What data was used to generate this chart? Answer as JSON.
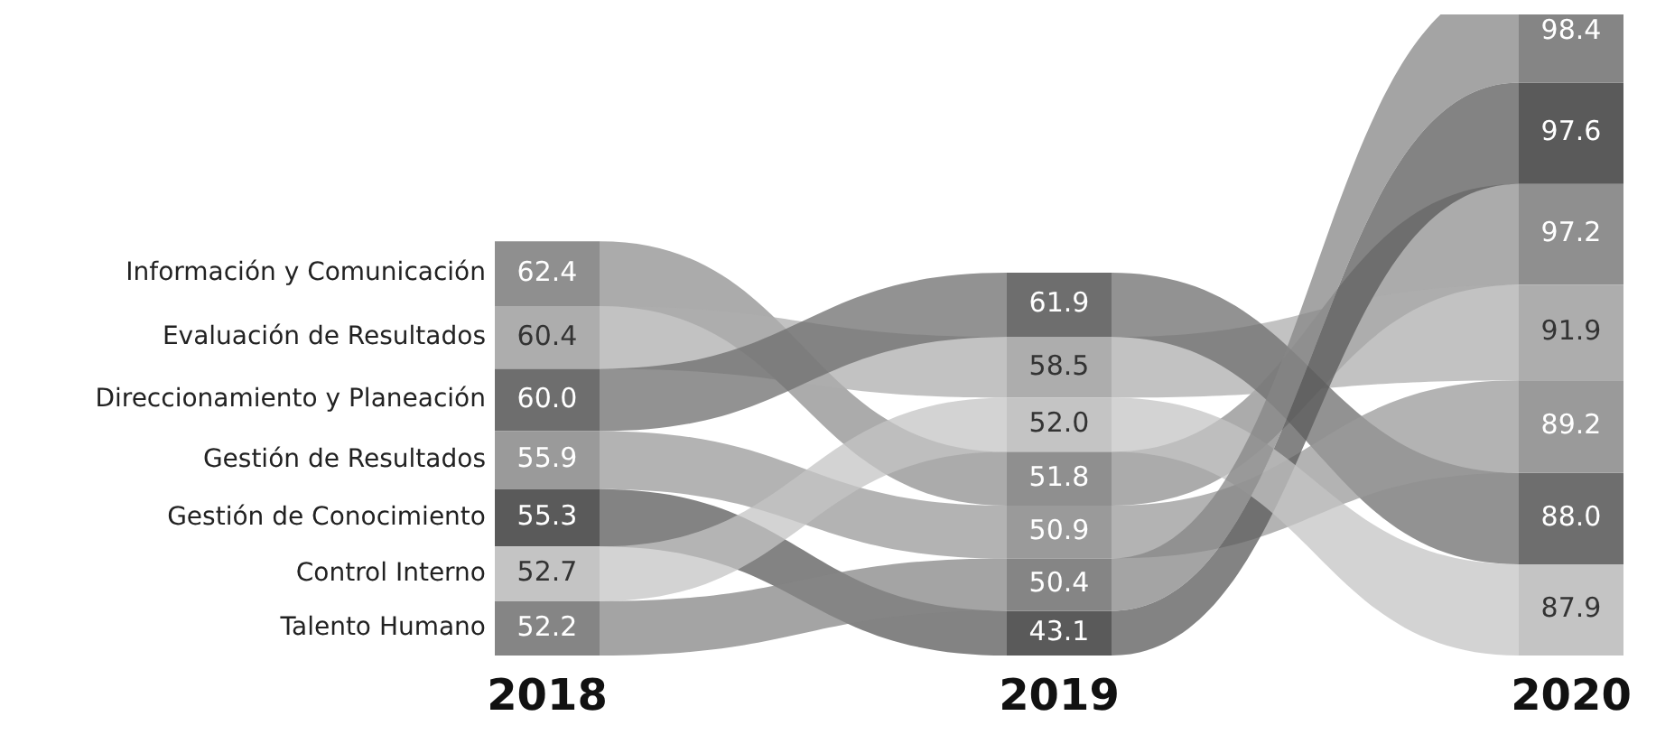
{
  "chart_data": {
    "type": "other",
    "categories": [
      "2018",
      "2019",
      "2020"
    ],
    "legend": "left",
    "series": [
      {
        "name": "Información y Comunicación",
        "color": "#8f8f8f",
        "values": [
          62.4,
          51.8,
          97.2
        ],
        "value_labels": [
          "62.4",
          "51.8",
          "97.2"
        ]
      },
      {
        "name": "Evaluación de Resultados",
        "color": "#adadad",
        "values": [
          60.4,
          58.5,
          91.9
        ],
        "value_labels": [
          "60.4",
          "58.5",
          "91.9"
        ]
      },
      {
        "name": "Direccionamiento y Planeación",
        "color": "#6e6e6e",
        "values": [
          60.0,
          61.9,
          88.0
        ],
        "value_labels": [
          "60.0",
          "61.9",
          "88.0"
        ]
      },
      {
        "name": "Gestión de Resultados",
        "color": "#9a9a9a",
        "values": [
          55.9,
          50.9,
          89.2
        ],
        "value_labels": [
          "55.9",
          "50.9",
          "89.2"
        ]
      },
      {
        "name": "Gestión de Conocimiento",
        "color": "#5a5a5a",
        "values": [
          55.3,
          43.1,
          97.6
        ],
        "value_labels": [
          "55.3",
          "43.1",
          "97.6"
        ]
      },
      {
        "name": "Control Interno",
        "color": "#c4c4c4",
        "values": [
          52.7,
          52.0,
          87.9
        ],
        "value_labels": [
          "52.7",
          "52.0",
          "87.9"
        ]
      },
      {
        "name": "Talento Humano",
        "color": "#858585",
        "values": [
          52.2,
          50.4,
          98.4
        ],
        "value_labels": [
          "52.2",
          "50.4",
          "98.4"
        ]
      }
    ]
  }
}
